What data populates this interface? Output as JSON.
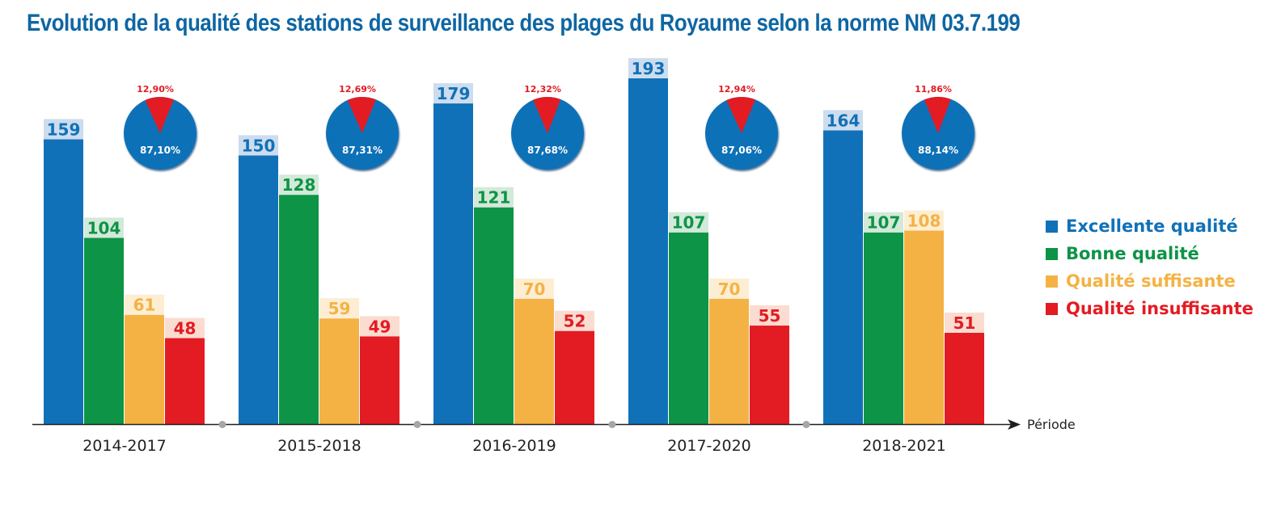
{
  "chart_data": {
    "type": "bar",
    "title": "Evolution de la qualité des stations de surveillance des plages du Royaume selon la norme NM 03.7.199",
    "xlabel": "Période",
    "ylabel": "",
    "ylim": [
      0,
      200
    ],
    "grid": false,
    "legend_position": "right",
    "categories": [
      "2014-2017",
      "2015-2018",
      "2016-2019",
      "2017-2020",
      "2018-2021"
    ],
    "series": [
      {
        "name": "Excellente qualité",
        "color": "#1071b8",
        "label_bg": "#cddcee",
        "values": [
          159,
          150,
          179,
          193,
          164
        ]
      },
      {
        "name": "Bonne qualité",
        "color": "#0d9446",
        "label_bg": "#d3e9d9",
        "values": [
          104,
          128,
          121,
          107,
          107
        ]
      },
      {
        "name": "Qualité suffisante",
        "color": "#f4b245",
        "label_bg": "#fdeed3",
        "values": [
          61,
          59,
          70,
          70,
          108
        ]
      },
      {
        "name": "Qualité insuffisante",
        "color": "#e31b23",
        "label_bg": "#fbdcd0",
        "values": [
          48,
          49,
          52,
          55,
          51
        ]
      }
    ],
    "value_labels": [
      [
        "159",
        "104",
        "61",
        "48"
      ],
      [
        "150",
        "128",
        "59",
        "49"
      ],
      [
        "179",
        "121",
        "70",
        "52"
      ],
      [
        "193",
        "107",
        "70",
        "55"
      ],
      [
        "164",
        "107",
        "108",
        "51"
      ]
    ],
    "pies": [
      {
        "category": "2014-2017",
        "conform_pct": 87.1,
        "nonconform_pct": 12.9,
        "conform_label": "87,10%",
        "nonconform_label": "12,90%"
      },
      {
        "category": "2015-2018",
        "conform_pct": 87.31,
        "nonconform_pct": 12.69,
        "conform_label": "87,31%",
        "nonconform_label": "12,69%"
      },
      {
        "category": "2016-2019",
        "conform_pct": 87.68,
        "nonconform_pct": 12.32,
        "conform_label": "87,68%",
        "nonconform_label": "12,32%"
      },
      {
        "category": "2017-2020",
        "conform_pct": 87.06,
        "nonconform_pct": 12.94,
        "conform_label": "87,06%",
        "nonconform_label": "12,94%"
      },
      {
        "category": "2018-2021",
        "conform_pct": 88.14,
        "nonconform_pct": 11.86,
        "conform_label": "88,14%",
        "nonconform_label": "11,86%"
      }
    ],
    "pie_colors": {
      "conform": "#1071b8",
      "nonconform": "#e31b23"
    },
    "axis_color": "#231f20",
    "separator_color": "#a6a6a6"
  }
}
